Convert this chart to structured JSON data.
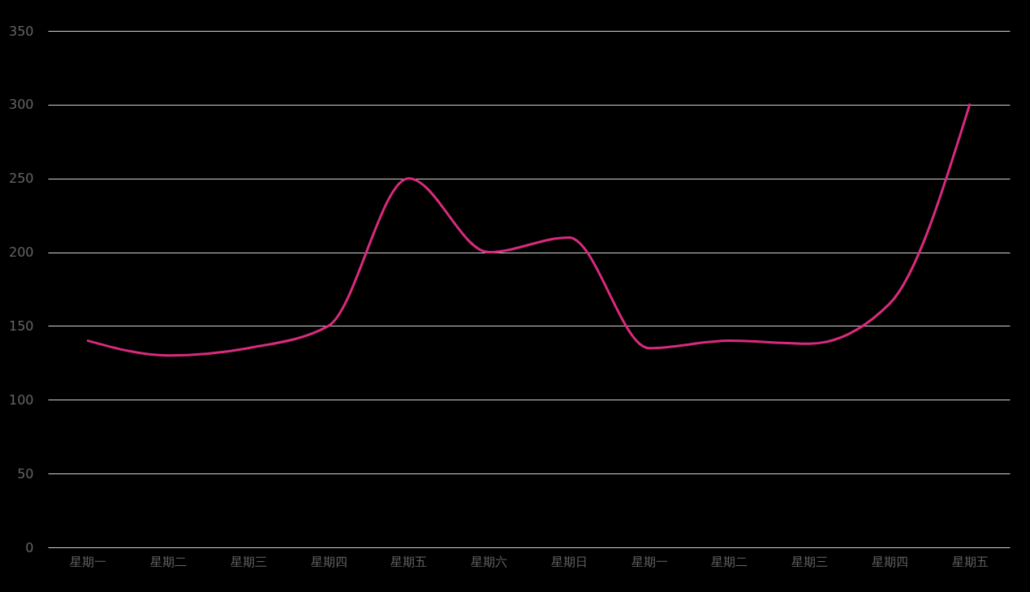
{
  "chart_data": {
    "type": "line",
    "categories": [
      "星期一",
      "星期二",
      "星期三",
      "星期四",
      "星期五",
      "星期六",
      "星期日",
      "星期一",
      "星期二",
      "星期三",
      "星期四",
      "星期五"
    ],
    "series": [
      {
        "color": "#d92a7e",
        "values": [
          140,
          130,
          135,
          150,
          250,
          200,
          210,
          135,
          140,
          138,
          165,
          300
        ]
      }
    ],
    "ylim": [
      0,
      350
    ],
    "yticks": [
      0,
      50,
      100,
      150,
      200,
      250,
      300,
      350
    ],
    "grid": "y",
    "marker": "none",
    "line_style": "solid"
  }
}
